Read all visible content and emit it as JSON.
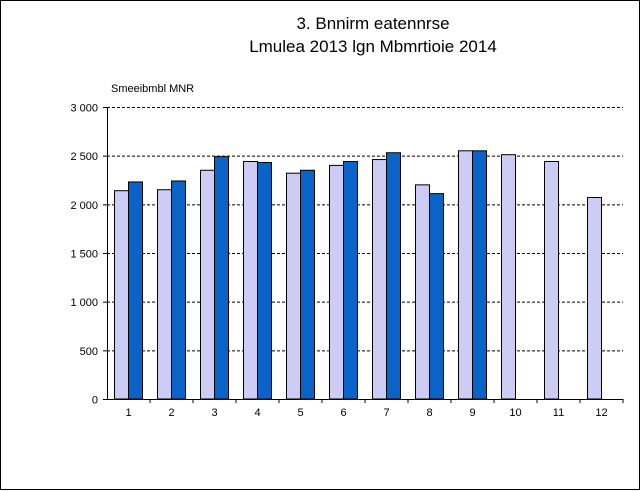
{
  "chart_data": {
    "type": "bar",
    "title": "3. Bnnirm eatennrse",
    "subtitle": "Lmulea 2013 lgn Mbmrtioie 2014",
    "ylabel": "Smeeibmbl MNR",
    "xlabel": "",
    "categories": [
      "1",
      "2",
      "3",
      "4",
      "5",
      "6",
      "7",
      "8",
      "9",
      "10",
      "11",
      "12"
    ],
    "series": [
      {
        "values": [
          2140,
          2150,
          2350,
          2440,
          2320,
          2400,
          2460,
          2200,
          2550,
          2510,
          2440,
          2070
        ],
        "color": "#ccccf5"
      },
      {
        "values": [
          2230,
          2240,
          2490,
          2430,
          2350,
          2440,
          2530,
          2110,
          2550,
          null,
          null,
          null
        ],
        "color": "#0a64c8"
      }
    ],
    "ylim": [
      0,
      3000
    ],
    "yticks": [
      0,
      500,
      1000,
      1500,
      2000,
      2500,
      3000
    ],
    "ytick_labels": [
      "0",
      "500",
      "1 000",
      "1 500",
      "2 000",
      "2 500",
      "3 000"
    ],
    "grid": "horizontal dashed",
    "legend": "none"
  }
}
